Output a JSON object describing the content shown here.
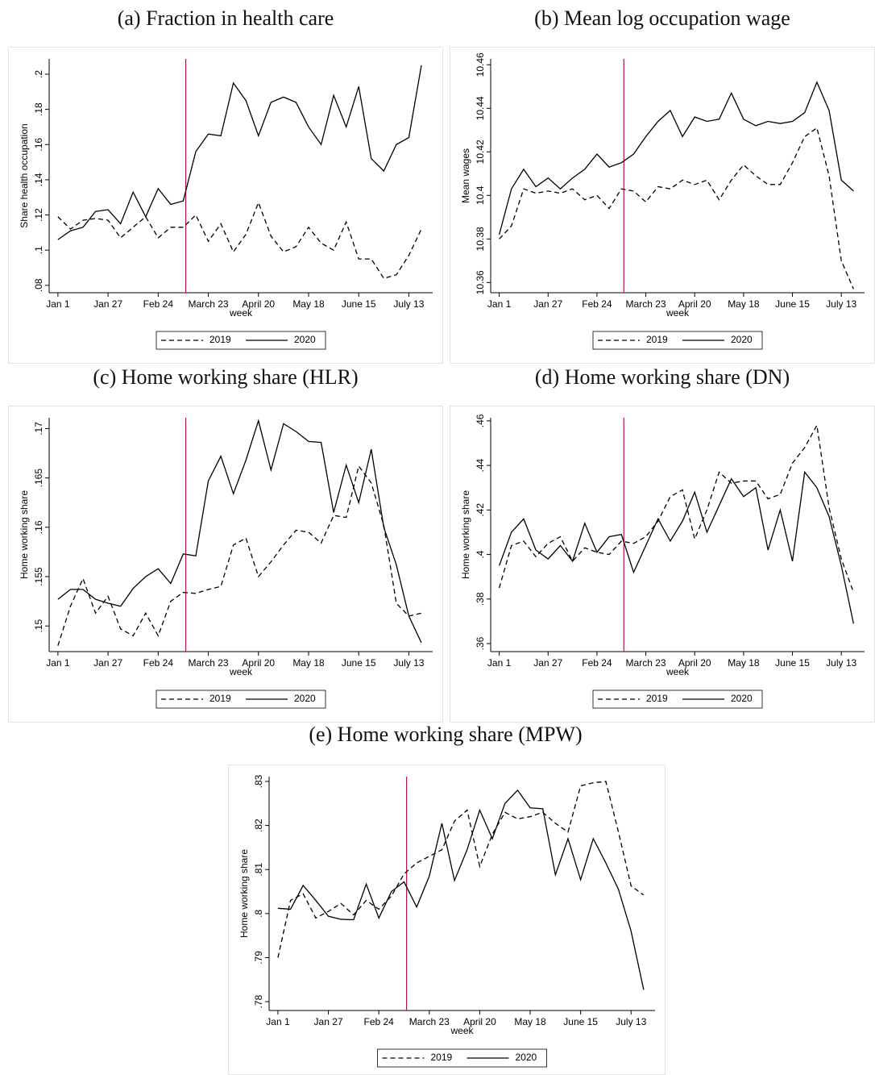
{
  "chart_data": [
    {
      "type": "line",
      "title": "(a) Fraction in health care",
      "ylabel": "Share health occupation",
      "xlabel": "week",
      "x": [
        1,
        2,
        3,
        4,
        5,
        6,
        7,
        8,
        9,
        10,
        11,
        12,
        13,
        14,
        15,
        16,
        17,
        18,
        19,
        20,
        21,
        22,
        23,
        24,
        25,
        26,
        27,
        28,
        29,
        30
      ],
      "xlim": [
        0.3,
        30.9
      ],
      "xticks": [
        {
          "value": 1,
          "label": "Jan 1"
        },
        {
          "value": 5,
          "label": "Jan 27"
        },
        {
          "value": 9,
          "label": "Feb 24"
        },
        {
          "value": 13,
          "label": "March 23"
        },
        {
          "value": 17,
          "label": "April 20"
        },
        {
          "value": 21,
          "label": "May 18"
        },
        {
          "value": 25,
          "label": "June 15"
        },
        {
          "value": 29,
          "label": "July 13"
        }
      ],
      "ylim": [
        0.0758,
        0.2087
      ],
      "yticks": [
        {
          "value": 0.08,
          "label": ".08"
        },
        {
          "value": 0.1,
          "label": ".1"
        },
        {
          "value": 0.12,
          "label": ".12"
        },
        {
          "value": 0.14,
          "label": ".14"
        },
        {
          "value": 0.16,
          "label": ".16"
        },
        {
          "value": 0.18,
          "label": ".18"
        },
        {
          "value": 0.2,
          "label": ".2"
        }
      ],
      "vline": {
        "x": 11.2,
        "color": "#b2163b"
      },
      "legend": "bottom",
      "series": [
        {
          "name": "2019",
          "color": "#000000",
          "style": "dashed",
          "values": [
            0.119,
            0.112,
            0.117,
            0.118,
            0.117,
            0.107,
            0.113,
            0.119,
            0.107,
            0.113,
            0.113,
            0.12,
            0.105,
            0.115,
            0.099,
            0.109,
            0.127,
            0.108,
            0.099,
            0.102,
            0.113,
            0.104,
            0.1,
            0.116,
            0.095,
            0.095,
            0.084,
            0.086,
            0.097,
            0.112
          ]
        },
        {
          "name": "2020",
          "color": "#000000",
          "style": "solid",
          "values": [
            0.106,
            0.111,
            0.113,
            0.122,
            0.123,
            0.115,
            0.133,
            0.119,
            0.135,
            0.126,
            0.128,
            0.156,
            0.166,
            0.165,
            0.195,
            0.185,
            0.165,
            0.184,
            0.187,
            0.184,
            0.17,
            0.16,
            0.188,
            0.17,
            0.193,
            0.152,
            0.145,
            0.16,
            0.164,
            0.205
          ]
        }
      ]
    },
    {
      "type": "line",
      "title": "(b) Mean log occupation wage",
      "ylabel": "Mean wages",
      "xlabel": "week",
      "x": [
        1,
        2,
        3,
        4,
        5,
        6,
        7,
        8,
        9,
        10,
        11,
        12,
        13,
        14,
        15,
        16,
        17,
        18,
        19,
        20,
        21,
        22,
        23,
        24,
        25,
        26,
        27,
        28,
        29,
        30
      ],
      "xlim": [
        0.3,
        30.9
      ],
      "xticks": [
        {
          "value": 1,
          "label": "Jan 1"
        },
        {
          "value": 5,
          "label": "Jan 27"
        },
        {
          "value": 9,
          "label": "Feb 24"
        },
        {
          "value": 13,
          "label": "March 23"
        },
        {
          "value": 17,
          "label": "April 20"
        },
        {
          "value": 21,
          "label": "May 18"
        },
        {
          "value": 25,
          "label": "June 15"
        },
        {
          "value": 29,
          "label": "July 13"
        }
      ],
      "ylim": [
        10.3553,
        10.4627
      ],
      "yticks": [
        10.36,
        10.38,
        10.4,
        10.42,
        10.44,
        10.46
      ],
      "vline": {
        "x": 11.2,
        "color": "#b2163b"
      },
      "legend": "bottom",
      "series": [
        {
          "name": "2019",
          "color": "#000000",
          "style": "dashed",
          "values": [
            10.38,
            10.386,
            10.403,
            10.401,
            10.402,
            10.401,
            10.403,
            10.398,
            10.4,
            10.394,
            10.403,
            10.402,
            10.397,
            10.404,
            10.403,
            10.407,
            10.405,
            10.407,
            10.398,
            10.407,
            10.414,
            10.409,
            10.405,
            10.405,
            10.415,
            10.427,
            10.431,
            10.409,
            10.37,
            10.357
          ]
        },
        {
          "name": "2020",
          "color": "#000000",
          "style": "solid",
          "values": [
            10.382,
            10.403,
            10.412,
            10.404,
            10.408,
            10.403,
            10.408,
            10.412,
            10.419,
            10.413,
            10.415,
            10.419,
            10.427,
            10.434,
            10.439,
            10.427,
            10.436,
            10.434,
            10.435,
            10.447,
            10.435,
            10.432,
            10.434,
            10.433,
            10.434,
            10.438,
            10.452,
            10.439,
            10.407,
            10.402
          ]
        }
      ]
    },
    {
      "type": "line",
      "title": "(c) Home working share (HLR)",
      "ylabel": "Home working share",
      "xlabel": "week",
      "x": [
        1,
        2,
        3,
        4,
        5,
        6,
        7,
        8,
        9,
        10,
        11,
        12,
        13,
        14,
        15,
        16,
        17,
        18,
        19,
        20,
        21,
        22,
        23,
        24,
        25,
        26,
        27,
        28,
        29,
        30
      ],
      "xlim": [
        0.3,
        30.9
      ],
      "xticks": [
        {
          "value": 1,
          "label": "Jan 1"
        },
        {
          "value": 5,
          "label": "Jan 27"
        },
        {
          "value": 9,
          "label": "Feb 24"
        },
        {
          "value": 13,
          "label": "March 23"
        },
        {
          "value": 17,
          "label": "April 20"
        },
        {
          "value": 21,
          "label": "May 18"
        },
        {
          "value": 25,
          "label": "June 15"
        },
        {
          "value": 29,
          "label": "July 13"
        }
      ],
      "ylim": [
        0.1474,
        0.1711
      ],
      "yticks": [
        {
          "value": 0.15,
          "label": ".15"
        },
        {
          "value": 0.155,
          "label": ".155"
        },
        {
          "value": 0.16,
          "label": ".16"
        },
        {
          "value": 0.165,
          "label": ".165"
        },
        {
          "value": 0.17,
          "label": ".17"
        }
      ],
      "vline": {
        "x": 11.2,
        "color": "#b2163b"
      },
      "legend": "bottom",
      "series": [
        {
          "name": "2019",
          "color": "#000000",
          "style": "dashed",
          "values": [
            0.148,
            0.152,
            0.1548,
            0.1513,
            0.153,
            0.1497,
            0.149,
            0.1513,
            0.149,
            0.1525,
            0.1534,
            0.1533,
            0.1537,
            0.154,
            0.1582,
            0.1589,
            0.155,
            0.1565,
            0.1582,
            0.1597,
            0.1595,
            0.1584,
            0.1612,
            0.161,
            0.1662,
            0.1645,
            0.1602,
            0.1523,
            0.151,
            0.1513
          ]
        },
        {
          "name": "2020",
          "color": "#000000",
          "style": "solid",
          "values": [
            0.1527,
            0.1537,
            0.1537,
            0.1527,
            0.1523,
            0.152,
            0.1538,
            0.155,
            0.1558,
            0.1543,
            0.1573,
            0.1571,
            0.1647,
            0.1672,
            0.1634,
            0.1668,
            0.1708,
            0.1658,
            0.1705,
            0.1697,
            0.1687,
            0.1686,
            0.1615,
            0.1663,
            0.1625,
            0.1679,
            0.16,
            0.1562,
            0.151,
            0.1483
          ]
        }
      ]
    },
    {
      "type": "line",
      "title": "(d) Home working share (DN)",
      "ylabel": "Home working share",
      "xlabel": "week",
      "x": [
        1,
        2,
        3,
        4,
        5,
        6,
        7,
        8,
        9,
        10,
        11,
        12,
        13,
        14,
        15,
        16,
        17,
        18,
        19,
        20,
        21,
        22,
        23,
        24,
        25,
        26,
        27,
        28,
        29,
        30
      ],
      "xlim": [
        0.3,
        30.9
      ],
      "xticks": [
        {
          "value": 1,
          "label": "Jan 1"
        },
        {
          "value": 5,
          "label": "Jan 27"
        },
        {
          "value": 9,
          "label": "Feb 24"
        },
        {
          "value": 13,
          "label": "March 23"
        },
        {
          "value": 17,
          "label": "April 20"
        },
        {
          "value": 21,
          "label": "May 18"
        },
        {
          "value": 25,
          "label": "June 15"
        },
        {
          "value": 29,
          "label": "July 13"
        }
      ],
      "ylim": [
        0.3564,
        0.4614
      ],
      "yticks": [
        {
          "value": 0.36,
          "label": ".36"
        },
        {
          "value": 0.38,
          "label": ".38"
        },
        {
          "value": 0.4,
          "label": ".4"
        },
        {
          "value": 0.42,
          "label": ".42"
        },
        {
          "value": 0.44,
          "label": ".44"
        },
        {
          "value": 0.46,
          "label": ".46"
        }
      ],
      "vline": {
        "x": 11.2,
        "color": "#b2163b"
      },
      "legend": "bottom",
      "series": [
        {
          "name": "2019",
          "color": "#000000",
          "style": "dashed",
          "values": [
            0.385,
            0.404,
            0.406,
            0.399,
            0.405,
            0.408,
            0.397,
            0.403,
            0.401,
            0.4,
            0.406,
            0.405,
            0.408,
            0.415,
            0.426,
            0.429,
            0.407,
            0.42,
            0.437,
            0.432,
            0.433,
            0.433,
            0.425,
            0.427,
            0.441,
            0.448,
            0.458,
            0.421,
            0.398,
            0.383
          ]
        },
        {
          "name": "2020",
          "color": "#000000",
          "style": "solid",
          "values": [
            0.395,
            0.41,
            0.416,
            0.402,
            0.398,
            0.404,
            0.397,
            0.414,
            0.401,
            0.408,
            0.409,
            0.392,
            0.404,
            0.416,
            0.406,
            0.415,
            0.428,
            0.41,
            0.422,
            0.434,
            0.426,
            0.43,
            0.402,
            0.42,
            0.397,
            0.437,
            0.43,
            0.417,
            0.395,
            0.369
          ]
        }
      ]
    },
    {
      "type": "line",
      "title": "(e) Home working share (MPW)",
      "ylabel": "Home working share",
      "xlabel": "week",
      "x": [
        1,
        2,
        3,
        4,
        5,
        6,
        7,
        8,
        9,
        10,
        11,
        12,
        13,
        14,
        15,
        16,
        17,
        18,
        19,
        20,
        21,
        22,
        23,
        24,
        25,
        26,
        27,
        28,
        29,
        30
      ],
      "xlim": [
        0.3,
        30.9
      ],
      "xticks": [
        {
          "value": 1,
          "label": "Jan 1"
        },
        {
          "value": 5,
          "label": "Jan 27"
        },
        {
          "value": 9,
          "label": "Feb 24"
        },
        {
          "value": 13,
          "label": "March 23"
        },
        {
          "value": 17,
          "label": "April 20"
        },
        {
          "value": 21,
          "label": "May 18"
        },
        {
          "value": 25,
          "label": "June 15"
        },
        {
          "value": 29,
          "label": "July 13"
        }
      ],
      "ylim": [
        0.778,
        0.8311
      ],
      "yticks": [
        {
          "value": 0.78,
          "label": ".78"
        },
        {
          "value": 0.79,
          "label": ".79"
        },
        {
          "value": 0.8,
          "label": ".8"
        },
        {
          "value": 0.81,
          "label": ".81"
        },
        {
          "value": 0.82,
          "label": ".82"
        },
        {
          "value": 0.83,
          "label": ".83"
        }
      ],
      "vline": {
        "x": 11.2,
        "color": "#b2163b"
      },
      "legend": "bottom",
      "series": [
        {
          "name": "2019",
          "color": "#000000",
          "style": "dashed",
          "values": [
            0.79,
            0.803,
            0.8045,
            0.799,
            0.8005,
            0.8023,
            0.7997,
            0.803,
            0.801,
            0.804,
            0.809,
            0.8115,
            0.813,
            0.8145,
            0.821,
            0.8235,
            0.8107,
            0.818,
            0.823,
            0.8215,
            0.822,
            0.823,
            0.8205,
            0.8185,
            0.829,
            0.8297,
            0.83,
            0.8185,
            0.8063,
            0.8042
          ]
        },
        {
          "name": "2020",
          "color": "#000000",
          "style": "solid",
          "values": [
            0.8012,
            0.801,
            0.8064,
            0.803,
            0.7994,
            0.7987,
            0.7986,
            0.8067,
            0.799,
            0.805,
            0.8072,
            0.8015,
            0.8085,
            0.8205,
            0.8075,
            0.8145,
            0.8235,
            0.817,
            0.825,
            0.828,
            0.824,
            0.8238,
            0.8088,
            0.817,
            0.8077,
            0.817,
            0.8115,
            0.8055,
            0.796,
            0.7827
          ]
        }
      ]
    }
  ]
}
